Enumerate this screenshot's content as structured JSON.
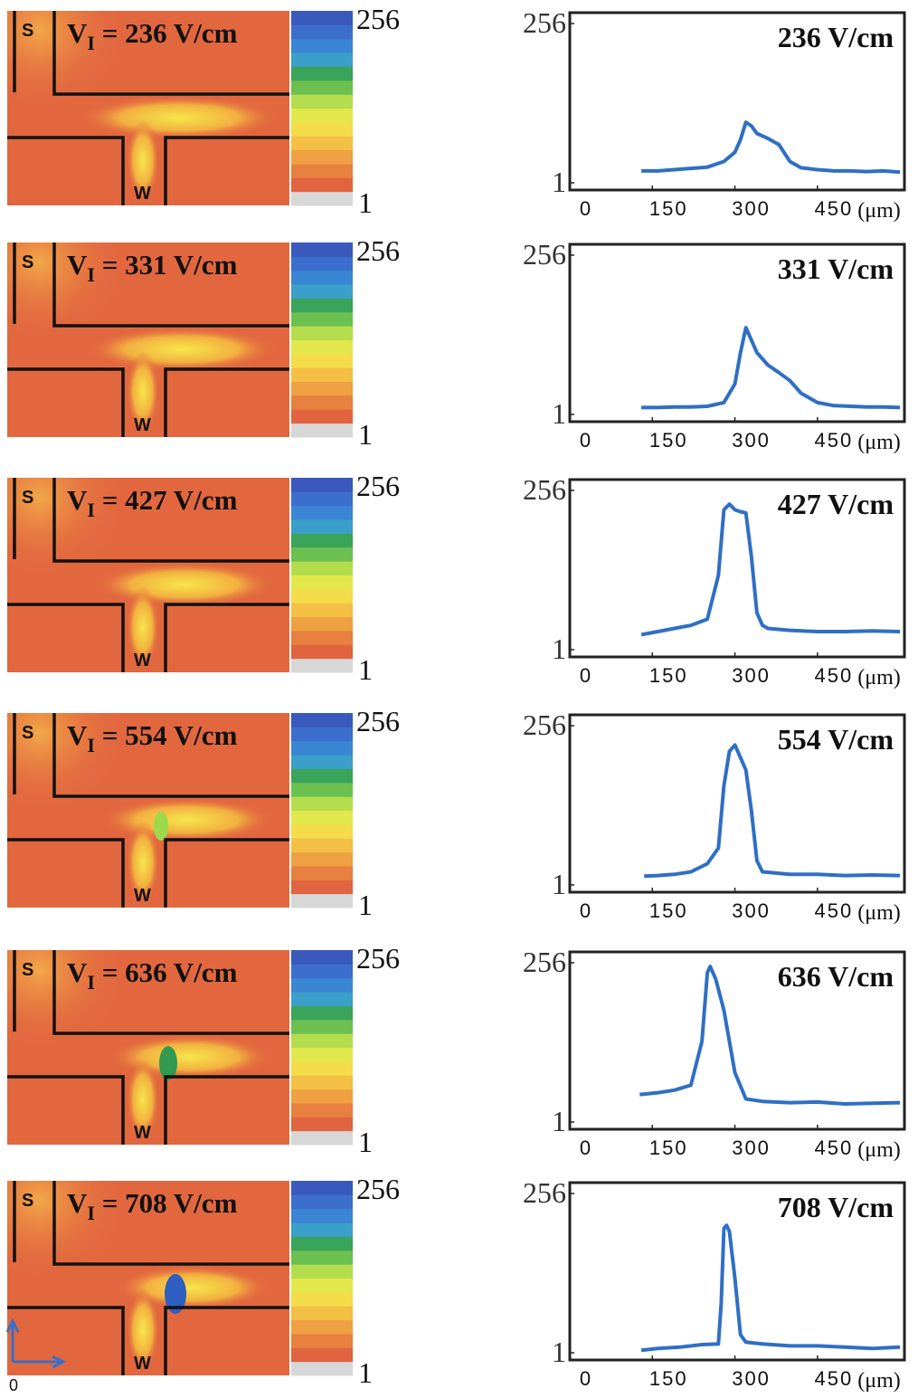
{
  "chart_data": [
    {
      "type": "line",
      "title": "236 V/cm",
      "xlabel": "(μm)",
      "xlim": [
        0,
        608
      ],
      "ylim": [
        1,
        256
      ],
      "xticks": [
        0,
        150,
        300,
        450
      ],
      "yticks": [
        1,
        256
      ],
      "series": [
        {
          "color": "#2f6fc4",
          "x": [
            130,
            160,
            190,
            220,
            250,
            280,
            300,
            310,
            320,
            330,
            340,
            360,
            380,
            400,
            420,
            450,
            480,
            510,
            540,
            570,
            600
          ],
          "values": [
            20,
            20,
            22,
            24,
            26,
            35,
            50,
            70,
            98,
            92,
            80,
            72,
            62,
            35,
            25,
            22,
            20,
            20,
            19,
            20,
            18
          ]
        }
      ]
    },
    {
      "type": "line",
      "title": "331 V/cm",
      "xlabel": "(μm)",
      "xlim": [
        0,
        608
      ],
      "ylim": [
        1,
        256
      ],
      "xticks": [
        0,
        150,
        300,
        450
      ],
      "yticks": [
        1,
        256
      ],
      "series": [
        {
          "color": "#2f6fc4",
          "x": [
            130,
            160,
            190,
            220,
            250,
            280,
            300,
            310,
            320,
            330,
            340,
            360,
            380,
            400,
            420,
            450,
            480,
            510,
            540,
            570,
            600
          ],
          "values": [
            12,
            12,
            13,
            13,
            14,
            20,
            50,
            100,
            140,
            120,
            100,
            80,
            68,
            55,
            35,
            20,
            15,
            14,
            13,
            13,
            12
          ]
        }
      ]
    },
    {
      "type": "line",
      "title": "427 V/cm",
      "xlabel": "(μm)",
      "xlim": [
        0,
        608
      ],
      "ylim": [
        1,
        256
      ],
      "xticks": [
        0,
        150,
        300,
        450
      ],
      "yticks": [
        1,
        256
      ],
      "series": [
        {
          "color": "#2f6fc4",
          "x": [
            130,
            160,
            190,
            220,
            250,
            270,
            280,
            290,
            300,
            310,
            320,
            330,
            340,
            350,
            360,
            400,
            450,
            500,
            550,
            600
          ],
          "values": [
            25,
            30,
            35,
            40,
            50,
            120,
            225,
            234,
            225,
            222,
            220,
            150,
            60,
            40,
            35,
            32,
            30,
            30,
            31,
            30
          ]
        }
      ]
    },
    {
      "type": "line",
      "title": "554 V/cm",
      "xlabel": "(μm)",
      "xlim": [
        0,
        608
      ],
      "ylim": [
        1,
        256
      ],
      "xticks": [
        0,
        150,
        300,
        450
      ],
      "yticks": [
        1,
        256
      ],
      "series": [
        {
          "color": "#2f6fc4",
          "x": [
            135,
            160,
            190,
            220,
            250,
            270,
            280,
            290,
            300,
            310,
            320,
            330,
            340,
            350,
            400,
            450,
            500,
            550,
            600
          ],
          "values": [
            15,
            16,
            18,
            22,
            35,
            60,
            160,
            215,
            225,
            205,
            185,
            120,
            40,
            22,
            18,
            18,
            16,
            17,
            16
          ]
        }
      ]
    },
    {
      "type": "line",
      "title": "636 V/cm",
      "xlabel": "(μm)",
      "xlim": [
        0,
        608
      ],
      "ylim": [
        1,
        256
      ],
      "xticks": [
        0,
        150,
        300,
        450
      ],
      "yticks": [
        1,
        256
      ],
      "series": [
        {
          "color": "#2f6fc4",
          "x": [
            127,
            160,
            190,
            220,
            240,
            250,
            255,
            265,
            280,
            300,
            320,
            350,
            400,
            450,
            500,
            550,
            600
          ],
          "values": [
            45,
            48,
            52,
            60,
            130,
            240,
            250,
            230,
            180,
            80,
            38,
            34,
            32,
            33,
            30,
            31,
            32
          ]
        }
      ]
    },
    {
      "type": "line",
      "title": "708 V/cm",
      "xlabel": "(μm)",
      "xlim": [
        0,
        608
      ],
      "ylim": [
        1,
        256
      ],
      "xticks": [
        0,
        150,
        300,
        450
      ],
      "yticks": [
        1,
        256
      ],
      "series": [
        {
          "color": "#2f6fc4",
          "x": [
            130,
            160,
            200,
            240,
            270,
            275,
            280,
            285,
            290,
            300,
            310,
            320,
            350,
            400,
            450,
            500,
            550,
            600
          ],
          "values": [
            5,
            8,
            10,
            14,
            15,
            80,
            200,
            205,
            195,
            120,
            30,
            18,
            15,
            12,
            12,
            10,
            8,
            10
          ]
        }
      ]
    }
  ],
  "panels": [
    {
      "source": "S",
      "waste": "W",
      "field": "V",
      "field_sub": "I",
      "field_rest": " = 236 V/cm",
      "bar_max": "256",
      "bar_min": "1"
    },
    {
      "source": "S",
      "waste": "W",
      "field": "V",
      "field_sub": "I",
      "field_rest": " = 331 V/cm",
      "bar_max": "256",
      "bar_min": "1"
    },
    {
      "source": "S",
      "waste": "W",
      "field": "V",
      "field_sub": "I",
      "field_rest": " = 427 V/cm",
      "bar_max": "256",
      "bar_min": "1"
    },
    {
      "source": "S",
      "waste": "W",
      "field": "V",
      "field_sub": "I",
      "field_rest": " = 554 V/cm",
      "bar_max": "256",
      "bar_min": "1"
    },
    {
      "source": "S",
      "waste": "W",
      "field": "V",
      "field_sub": "I",
      "field_rest": " = 636 V/cm",
      "bar_max": "256",
      "bar_min": "1"
    },
    {
      "source": "S",
      "waste": "W",
      "field": "V",
      "field_sub": "I",
      "field_rest": " = 708 V/cm",
      "bar_max": "256",
      "bar_min": "1"
    }
  ],
  "origin_label": "0"
}
